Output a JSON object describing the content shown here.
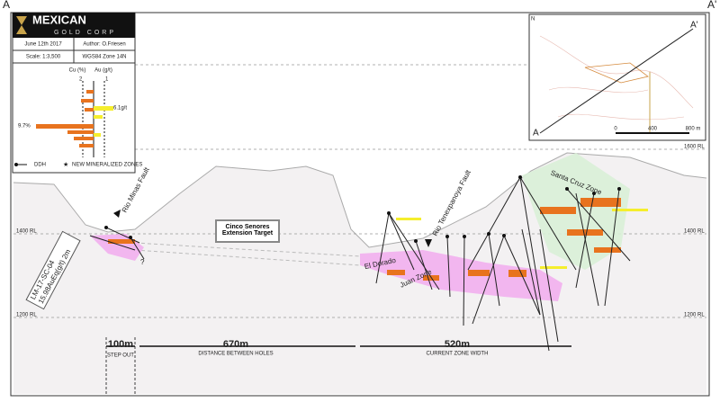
{
  "section": {
    "start_label": "A",
    "end_label": "A'"
  },
  "header": {
    "logo_top": "MEXICAN",
    "logo_bottom": "GOLD CORP",
    "date": "June 12th 2017",
    "author": "Author: O.Friesen",
    "scale": "Scale: 1:3,500",
    "datum": "WGS84 Zone 14N"
  },
  "histogram": {
    "cu_label": "Cu (%)",
    "au_label": "Au (g/t)",
    "cu_tick": "2",
    "au_tick": "1",
    "au_max": "6.1g/t",
    "cu_max": "9.7%"
  },
  "legend": {
    "ddh": "DDH",
    "new_zones": "NEW MINERALIZED ZONES"
  },
  "elevations": {
    "rl1600": "1600 RL",
    "rl1400": "1400 RL",
    "rl1200": "1200 RL"
  },
  "annotations": {
    "fault_west": "Rio Minas Fault",
    "fault_east": "Rio Tenexpanoya Fault",
    "target": "Cinco Senores Extension Target",
    "zone_dorado": "El Dorado",
    "zone_juan": "Juan Zone",
    "zone_santa": "Santa Cruz Zone",
    "hole": "LM-17-SC-04",
    "intercept": "15.98AuEq(g/t) 2m",
    "unknown": "?"
  },
  "measures": {
    "step": "100m",
    "step_note": "STEP OUT",
    "distance": "670m",
    "distance_note": "DISTANCE BETWEEN HOLES",
    "width": "520m",
    "width_note": "CURRENT ZONE WIDTH"
  },
  "inset": {
    "north": "N",
    "end": "A'",
    "start": "A",
    "scale_0": "0",
    "scale_mid": "400",
    "scale_end": "800 m"
  }
}
